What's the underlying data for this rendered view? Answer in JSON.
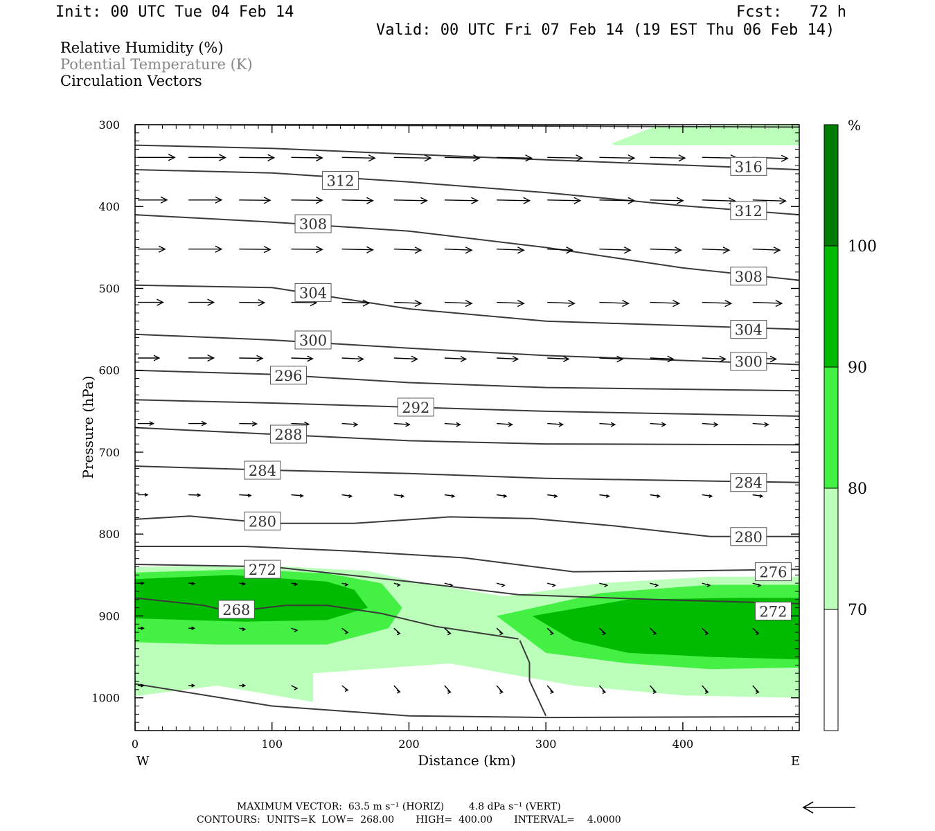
{
  "header": {
    "init": "Init: 00 UTC Tue 04 Feb 14",
    "fcst": "Fcst:   72 h",
    "valid": "Valid: 00 UTC Fri 07 Feb 14 (19 EST Thu 06 Feb 14)"
  },
  "legend": {
    "rh": "Relative Humidity (%)",
    "theta": "Potential Temperature (K)",
    "vectors": "Circulation Vectors"
  },
  "footer": {
    "max_vector": "MAXIMUM VECTOR:  63.5 m s⁻¹ (HORIZ)        4.8 dPa s⁻¹ (VERT)",
    "contours": "CONTOURS:  UNITS=K  LOW=  268.00       HIGH=  400.00       INTERVAL=    4.0000"
  },
  "colors": {
    "rh_70": "#bbffbb",
    "rh_80": "#44f044",
    "rh_90": "#00bb00",
    "rh_100": "#007a00",
    "contour": "#3a3a3a",
    "theta_legend": "#888888"
  },
  "chart_data": {
    "type": "cross-section",
    "xlabel": "Distance (km)",
    "ylabel": "Pressure (hPa)",
    "xlim": [
      0,
      485
    ],
    "ylim": [
      1040,
      300
    ],
    "y_scale": "linear-pressure",
    "x_ticks": [
      "0",
      "100",
      "200",
      "300",
      "400"
    ],
    "x_tick_values": [
      0,
      100,
      200,
      300,
      400
    ],
    "y_ticks": [
      "300",
      "400",
      "500",
      "600",
      "700",
      "800",
      "900",
      "1000"
    ],
    "y_tick_values": [
      300,
      400,
      500,
      600,
      700,
      800,
      900,
      1000
    ],
    "west_label": "W",
    "east_label": "E",
    "colorbar": {
      "unit": "%",
      "levels": [
        "70",
        "80",
        "90",
        "100"
      ],
      "level_values": [
        70,
        80,
        90,
        100
      ]
    },
    "theta_contours": [
      {
        "label": "",
        "points": [
          [
            0,
            300
          ],
          [
            200,
            301
          ],
          [
            485,
            303
          ]
        ]
      },
      {
        "label": "316",
        "points": [
          [
            0,
            325
          ],
          [
            100,
            329
          ],
          [
            200,
            336
          ],
          [
            300,
            343
          ],
          [
            485,
            355
          ]
        ],
        "label_at": [
          [
            448,
            351
          ]
        ]
      },
      {
        "label": "312",
        "points": [
          [
            0,
            355
          ],
          [
            100,
            359
          ],
          [
            200,
            370
          ],
          [
            300,
            383
          ],
          [
            400,
            399
          ],
          [
            485,
            410
          ]
        ],
        "label_at": [
          [
            150,
            368
          ],
          [
            448,
            405
          ]
        ]
      },
      {
        "label": "308",
        "points": [
          [
            0,
            410
          ],
          [
            100,
            419
          ],
          [
            200,
            430
          ],
          [
            300,
            450
          ],
          [
            400,
            475
          ],
          [
            485,
            490
          ]
        ],
        "label_at": [
          [
            130,
            421
          ],
          [
            448,
            485
          ]
        ]
      },
      {
        "label": "304",
        "points": [
          [
            0,
            496
          ],
          [
            100,
            499
          ],
          [
            150,
            512
          ],
          [
            200,
            525
          ],
          [
            300,
            540
          ],
          [
            485,
            550
          ]
        ],
        "label_at": [
          [
            130,
            505
          ],
          [
            448,
            550
          ]
        ]
      },
      {
        "label": "300",
        "points": [
          [
            0,
            556
          ],
          [
            100,
            563
          ],
          [
            200,
            573
          ],
          [
            300,
            582
          ],
          [
            485,
            593
          ]
        ],
        "label_at": [
          [
            130,
            563
          ],
          [
            448,
            589
          ]
        ]
      },
      {
        "label": "296",
        "points": [
          [
            0,
            600
          ],
          [
            100,
            605
          ],
          [
            200,
            615
          ],
          [
            300,
            621
          ],
          [
            485,
            625
          ]
        ],
        "label_at": [
          [
            112,
            606
          ]
        ]
      },
      {
        "label": "292",
        "points": [
          [
            0,
            636
          ],
          [
            100,
            640
          ],
          [
            200,
            645
          ],
          [
            300,
            650
          ],
          [
            485,
            656
          ]
        ],
        "label_at": [
          [
            205,
            645
          ]
        ]
      },
      {
        "label": "288",
        "points": [
          [
            0,
            670
          ],
          [
            100,
            678
          ],
          [
            200,
            686
          ],
          [
            300,
            690
          ],
          [
            485,
            691
          ]
        ],
        "label_at": [
          [
            112,
            678
          ]
        ]
      },
      {
        "label": "284",
        "points": [
          [
            0,
            717
          ],
          [
            100,
            722
          ],
          [
            200,
            726
          ],
          [
            300,
            732
          ],
          [
            485,
            737
          ]
        ],
        "label_at": [
          [
            93,
            722
          ],
          [
            448,
            737
          ]
        ]
      },
      {
        "label": "280",
        "points": [
          [
            0,
            782
          ],
          [
            40,
            778
          ],
          [
            100,
            787
          ],
          [
            160,
            787
          ],
          [
            230,
            779
          ],
          [
            290,
            781
          ],
          [
            350,
            790
          ],
          [
            420,
            803
          ],
          [
            485,
            803
          ]
        ],
        "label_at": [
          [
            93,
            784
          ],
          [
            448,
            803
          ]
        ]
      },
      {
        "label": "276",
        "points": [
          [
            0,
            815
          ],
          [
            80,
            815
          ],
          [
            160,
            821
          ],
          [
            240,
            829
          ],
          [
            320,
            846
          ],
          [
            400,
            845
          ],
          [
            485,
            843
          ]
        ],
        "label_at": [
          [
            466,
            846
          ]
        ]
      },
      {
        "label": "272",
        "points": [
          [
            0,
            837
          ],
          [
            100,
            840
          ],
          [
            200,
            858
          ],
          [
            280,
            874
          ],
          [
            380,
            880
          ],
          [
            485,
            885
          ]
        ],
        "label_at": [
          [
            93,
            843
          ],
          [
            466,
            894
          ]
        ]
      },
      {
        "label": "268",
        "points": [
          [
            0,
            878
          ],
          [
            50,
            887
          ],
          [
            70,
            895
          ],
          [
            110,
            887
          ],
          [
            140,
            887
          ],
          [
            180,
            897
          ],
          [
            220,
            913
          ],
          [
            280,
            928
          ]
        ],
        "label_at": [
          [
            74,
            892
          ]
        ]
      },
      {
        "label": "",
        "points": [
          [
            0,
            983
          ],
          [
            100,
            1010
          ],
          [
            200,
            1022
          ],
          [
            300,
            1024
          ],
          [
            485,
            1023
          ]
        ]
      },
      {
        "label": "",
        "points": [
          [
            281,
            930
          ],
          [
            288,
            957
          ],
          [
            288,
            979
          ],
          [
            300,
            1022
          ]
        ]
      }
    ],
    "rh_regions": [
      {
        "level": 70,
        "points": [
          [
            348,
            323
          ],
          [
            380,
            302
          ],
          [
            485,
            300
          ],
          [
            485,
            325
          ],
          [
            350,
            325
          ]
        ]
      },
      {
        "level": 70,
        "points": [
          [
            0,
            840
          ],
          [
            90,
            838
          ],
          [
            170,
            845
          ],
          [
            210,
            860
          ],
          [
            270,
            876
          ],
          [
            340,
            860
          ],
          [
            420,
            852
          ],
          [
            485,
            852
          ],
          [
            485,
            1000
          ],
          [
            400,
            997
          ],
          [
            320,
            985
          ],
          [
            230,
            958
          ],
          [
            130,
            970
          ],
          [
            130,
            1005
          ],
          [
            60,
            985
          ],
          [
            0,
            998
          ]
        ]
      },
      {
        "level": 80,
        "points": [
          [
            0,
            847
          ],
          [
            80,
            843
          ],
          [
            140,
            848
          ],
          [
            180,
            860
          ],
          [
            195,
            890
          ],
          [
            185,
            915
          ],
          [
            140,
            935
          ],
          [
            60,
            935
          ],
          [
            0,
            932
          ]
        ]
      },
      {
        "level": 80,
        "points": [
          [
            264,
            900
          ],
          [
            340,
            872
          ],
          [
            420,
            862
          ],
          [
            485,
            862
          ],
          [
            485,
            963
          ],
          [
            420,
            965
          ],
          [
            360,
            958
          ],
          [
            300,
            945
          ]
        ]
      },
      {
        "level": 90,
        "points": [
          [
            0,
            855
          ],
          [
            70,
            850
          ],
          [
            140,
            858
          ],
          [
            160,
            868
          ],
          [
            170,
            890
          ],
          [
            140,
            905
          ],
          [
            80,
            907
          ],
          [
            0,
            903
          ]
        ]
      },
      {
        "level": 90,
        "points": [
          [
            290,
            900
          ],
          [
            360,
            880
          ],
          [
            440,
            878
          ],
          [
            485,
            878
          ],
          [
            485,
            953
          ],
          [
            420,
            950
          ],
          [
            360,
            945
          ],
          [
            320,
            930
          ]
        ]
      }
    ],
    "vector_rows": [
      {
        "p": 340,
        "x": [
          0,
          37,
          74,
          112,
          149,
          187,
          224,
          262,
          299,
          337,
          374,
          412,
          449
        ],
        "len": [
          38,
          38,
          36,
          32,
          34,
          38,
          36,
          36,
          36,
          36,
          36,
          36,
          36
        ],
        "drop": [
          0,
          1,
          2,
          3,
          4,
          4,
          4,
          4,
          4,
          4,
          4,
          4,
          6
        ]
      },
      {
        "p": 392,
        "x": [
          0,
          37,
          74,
          112,
          149,
          187,
          224,
          262,
          299,
          337,
          374,
          412,
          449
        ],
        "len": [
          30,
          34,
          32,
          32,
          32,
          34,
          34,
          34,
          34,
          36,
          34,
          34,
          34
        ],
        "drop": [
          0,
          0,
          2,
          2,
          4,
          4,
          4,
          4,
          4,
          4,
          4,
          6,
          6
        ]
      },
      {
        "p": 452,
        "x": [
          0,
          37,
          74,
          112,
          149,
          187,
          224,
          262,
          299,
          337,
          374,
          412,
          449
        ],
        "len": [
          28,
          34,
          32,
          32,
          32,
          28,
          28,
          28,
          26,
          32,
          32,
          28,
          28
        ],
        "drop": [
          0,
          0,
          2,
          2,
          4,
          6,
          6,
          6,
          6,
          6,
          6,
          6,
          6
        ]
      },
      {
        "p": 517,
        "x": [
          0,
          37,
          74,
          112,
          149,
          187,
          224,
          262,
          299,
          337,
          374,
          412,
          449
        ],
        "len": [
          26,
          26,
          26,
          26,
          28,
          28,
          28,
          28,
          28,
          30,
          30,
          30,
          30
        ],
        "drop": [
          0,
          0,
          2,
          2,
          4,
          6,
          6,
          6,
          6,
          6,
          6,
          6,
          6
        ]
      },
      {
        "p": 585,
        "x": [
          0,
          37,
          74,
          112,
          149,
          187,
          224,
          262,
          299,
          337,
          374,
          412,
          449
        ],
        "len": [
          22,
          26,
          24,
          22,
          22,
          24,
          22,
          22,
          22,
          24,
          24,
          24,
          24
        ],
        "drop": [
          0,
          0,
          2,
          4,
          6,
          6,
          6,
          6,
          6,
          6,
          6,
          6,
          6
        ]
      },
      {
        "p": 665,
        "x": [
          0,
          37,
          74,
          112,
          149,
          187,
          224,
          262,
          299,
          337,
          374,
          412,
          449
        ],
        "len": [
          16,
          18,
          18,
          18,
          16,
          16,
          16,
          16,
          16,
          16,
          16,
          16,
          16
        ],
        "drop": [
          0,
          0,
          2,
          4,
          6,
          6,
          6,
          6,
          6,
          6,
          6,
          6,
          6
        ]
      },
      {
        "p": 752,
        "x": [
          0,
          37,
          74,
          112,
          149,
          187,
          224,
          262,
          299,
          337,
          374,
          412,
          449
        ],
        "len": [
          10,
          12,
          12,
          12,
          10,
          10,
          10,
          10,
          10,
          10,
          10,
          10,
          10
        ],
        "drop": [
          0,
          2,
          4,
          6,
          8,
          8,
          8,
          8,
          8,
          8,
          8,
          8,
          8
        ]
      },
      {
        "p": 860,
        "x": [
          0,
          37,
          74,
          112,
          149,
          187,
          224,
          262,
          299,
          337,
          374,
          412,
          449
        ],
        "len": [
          6,
          6,
          6,
          6,
          6,
          6,
          8,
          8,
          8,
          8,
          8,
          8,
          8
        ],
        "drop": [
          0,
          2,
          4,
          6,
          8,
          10,
          12,
          12,
          12,
          12,
          12,
          12,
          12
        ]
      },
      {
        "p": 915,
        "x": [
          0,
          37,
          74,
          112,
          149,
          187,
          224,
          262,
          299,
          337,
          374,
          412,
          449
        ],
        "len": [
          6,
          6,
          6,
          6,
          6,
          6,
          6,
          6,
          6,
          6,
          6,
          6,
          6
        ],
        "drop": [
          0,
          0,
          6,
          12,
          24,
          30,
          30,
          30,
          30,
          30,
          30,
          30,
          30
        ]
      },
      {
        "p": 985,
        "x": [
          0,
          37,
          74,
          112,
          149,
          187,
          224,
          262,
          299,
          337,
          374,
          412,
          449
        ],
        "len": [
          6,
          6,
          6,
          6,
          6,
          6,
          6,
          6,
          6,
          6,
          6,
          6,
          6
        ],
        "drop": [
          0,
          0,
          0,
          16,
          26,
          36,
          38,
          38,
          38,
          38,
          38,
          38,
          38
        ]
      }
    ]
  }
}
